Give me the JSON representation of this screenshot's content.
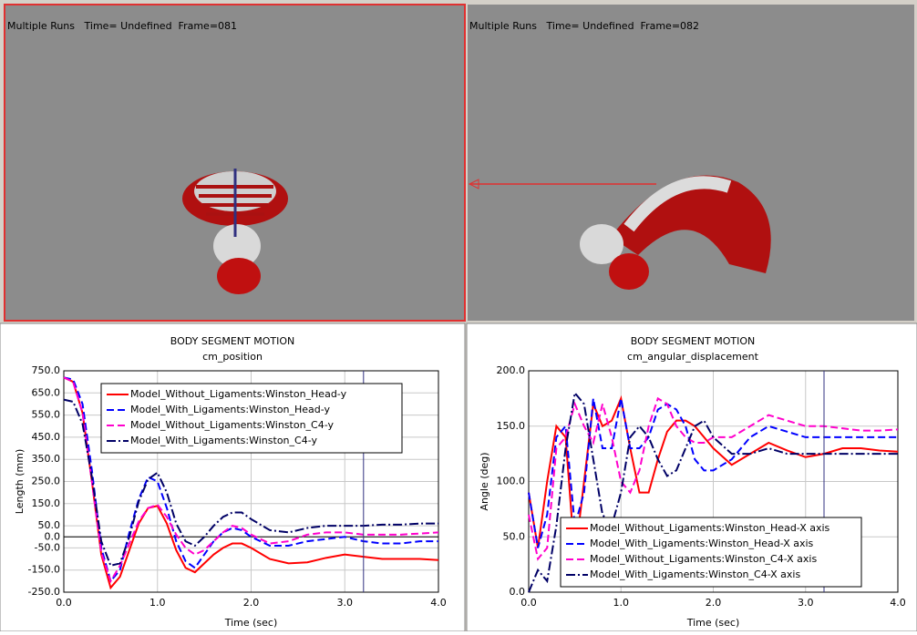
{
  "viewports": [
    {
      "label": "Multiple Runs   Time= Undefined  Frame=081"
    },
    {
      "label": "Multiple Runs   Time= Undefined  Frame=082"
    }
  ],
  "chart_data": [
    {
      "type": "line",
      "title": "BODY SEGMENT MOTION",
      "subtitle": "cm_position",
      "x_label": "Time (sec)",
      "y_label": "Length (mm)",
      "x": [
        0,
        0.1,
        0.2,
        0.3,
        0.4,
        0.5,
        0.6,
        0.7,
        0.8,
        0.9,
        1.0,
        1.1,
        1.2,
        1.3,
        1.4,
        1.5,
        1.6,
        1.7,
        1.8,
        1.9,
        2.0,
        2.2,
        2.4,
        2.6,
        2.8,
        3.0,
        3.2,
        3.4,
        3.6,
        3.8,
        4.0
      ],
      "xlim": [
        0,
        4
      ],
      "xticks": [
        {
          "value": 0,
          "label": "0.0"
        },
        {
          "value": 1,
          "label": "1.0"
        },
        {
          "value": 2,
          "label": "2.0"
        },
        {
          "value": 3,
          "label": "3.0"
        },
        {
          "value": 4,
          "label": "4.0"
        }
      ],
      "ylim": [
        -250,
        750
      ],
      "yticks": [
        {
          "value": -250,
          "label": "-250.0"
        },
        {
          "value": -150,
          "label": "-150.0"
        },
        {
          "value": -50,
          "label": "-50.0"
        },
        {
          "value": 0,
          "label": "0.0"
        },
        {
          "value": 50,
          "label": "50.0"
        },
        {
          "value": 150,
          "label": "150.0"
        },
        {
          "value": 250,
          "label": "250.0"
        },
        {
          "value": 350,
          "label": "350.0"
        },
        {
          "value": 450,
          "label": "450.0"
        },
        {
          "value": 550,
          "label": "550.0"
        },
        {
          "value": 650,
          "label": "650.0"
        },
        {
          "value": 750,
          "label": "750.0"
        }
      ],
      "grid": true,
      "legend": "upper right",
      "cursor_x": 3.2,
      "series": [
        {
          "name": "Model_Without_Ligaments:Winston_Head-y",
          "color": "#ff0000",
          "style": "solid",
          "values": [
            720,
            700,
            560,
            250,
            -80,
            -230,
            -180,
            -60,
            60,
            130,
            140,
            60,
            -60,
            -140,
            -160,
            -120,
            -80,
            -50,
            -30,
            -30,
            -50,
            -100,
            -120,
            -115,
            -95,
            -80,
            -90,
            -100,
            -100,
            -100,
            -105
          ]
        },
        {
          "name": "Model_With_Ligaments:Winston_Head-y",
          "color": "#0000ff",
          "style": "dashed",
          "values": [
            720,
            710,
            600,
            300,
            -50,
            -200,
            -150,
            20,
            170,
            270,
            250,
            130,
            -20,
            -110,
            -140,
            -80,
            -20,
            20,
            40,
            30,
            0,
            -40,
            -40,
            -20,
            -10,
            0,
            -20,
            -30,
            -30,
            -20,
            -20
          ]
        },
        {
          "name": "Model_Without_Ligaments:Winston_C4-y",
          "color": "#ff00cc",
          "style": "dashed",
          "values": [
            720,
            700,
            560,
            250,
            -70,
            -200,
            -130,
            -30,
            70,
            130,
            145,
            90,
            10,
            -50,
            -80,
            -60,
            -20,
            20,
            50,
            40,
            10,
            -30,
            -20,
            10,
            20,
            20,
            10,
            10,
            10,
            15,
            20
          ]
        },
        {
          "name": "Model_With_Ligaments:Winston_C4-y",
          "color": "#000066",
          "style": "dash-dot",
          "values": [
            620,
            610,
            510,
            270,
            -20,
            -130,
            -120,
            0,
            160,
            260,
            290,
            200,
            60,
            -20,
            -40,
            0,
            50,
            90,
            110,
            110,
            80,
            30,
            20,
            40,
            50,
            50,
            50,
            55,
            55,
            60,
            60
          ]
        }
      ]
    },
    {
      "type": "line",
      "title": "BODY SEGMENT MOTION",
      "subtitle": "cm_angular_displacement",
      "x_label": "Time (sec)",
      "y_label": "Angle (deg)",
      "x": [
        0,
        0.1,
        0.2,
        0.3,
        0.4,
        0.5,
        0.6,
        0.7,
        0.8,
        0.9,
        1.0,
        1.1,
        1.2,
        1.3,
        1.4,
        1.5,
        1.6,
        1.7,
        1.8,
        1.9,
        2.0,
        2.2,
        2.4,
        2.6,
        2.8,
        3.0,
        3.2,
        3.4,
        3.6,
        3.8,
        4.0
      ],
      "xlim": [
        0,
        4
      ],
      "xticks": [
        {
          "value": 0,
          "label": "0.0"
        },
        {
          "value": 1,
          "label": "1.0"
        },
        {
          "value": 2,
          "label": "2.0"
        },
        {
          "value": 3,
          "label": "3.0"
        },
        {
          "value": 4,
          "label": "4.0"
        }
      ],
      "ylim": [
        0,
        200
      ],
      "yticks": [
        {
          "value": 0,
          "label": "0.0"
        },
        {
          "value": 50,
          "label": "50.0"
        },
        {
          "value": 100,
          "label": "100.0"
        },
        {
          "value": 150,
          "label": "150.0"
        },
        {
          "value": 200,
          "label": "200.0"
        }
      ],
      "grid": true,
      "legend": "lower right",
      "cursor_x": 3.2,
      "series": [
        {
          "name": "Model_Without_Ligaments:Winston_Head-X axis",
          "color": "#ff0000",
          "style": "solid",
          "values": [
            90,
            40,
            100,
            150,
            140,
            30,
            100,
            170,
            150,
            155,
            175,
            130,
            90,
            90,
            120,
            145,
            155,
            155,
            150,
            140,
            130,
            115,
            125,
            135,
            128,
            122,
            125,
            130,
            130,
            128,
            127
          ]
        },
        {
          "name": "Model_With_Ligaments:Winston_Head-X axis",
          "color": "#0000ff",
          "style": "dashed",
          "values": [
            90,
            40,
            70,
            140,
            150,
            60,
            90,
            175,
            130,
            130,
            175,
            130,
            130,
            140,
            165,
            170,
            165,
            150,
            120,
            110,
            110,
            120,
            140,
            150,
            145,
            140,
            140,
            140,
            140,
            140,
            140
          ]
        },
        {
          "name": "Model_Without_Ligaments:Winston_C4-X axis",
          "color": "#ff00cc",
          "style": "dashed",
          "values": [
            70,
            30,
            40,
            130,
            140,
            170,
            150,
            135,
            170,
            140,
            100,
            90,
            110,
            150,
            175,
            170,
            150,
            140,
            135,
            135,
            140,
            140,
            150,
            160,
            155,
            150,
            150,
            148,
            146,
            146,
            147
          ]
        },
        {
          "name": "Model_With_Ligaments:Winston_C4-X axis",
          "color": "#000066",
          "style": "dash-dot",
          "values": [
            0,
            20,
            10,
            60,
            130,
            180,
            170,
            120,
            70,
            60,
            90,
            140,
            150,
            140,
            120,
            105,
            110,
            130,
            150,
            155,
            140,
            125,
            125,
            130,
            125,
            125,
            125,
            125,
            125,
            125,
            125
          ]
        }
      ]
    }
  ]
}
